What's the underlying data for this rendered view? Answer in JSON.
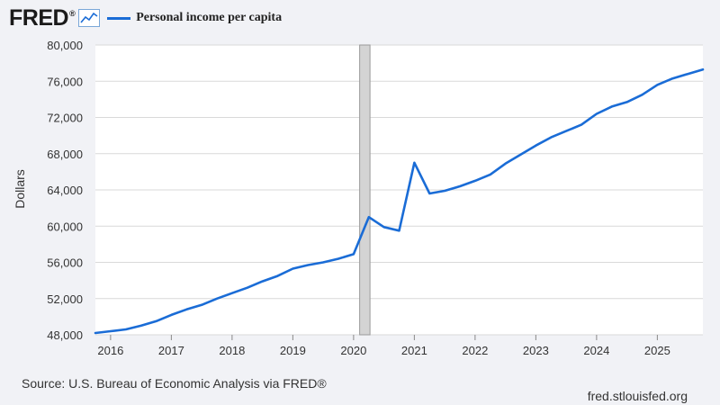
{
  "header": {
    "logo_text": "FRED",
    "logo_mark": "®",
    "logo_icon": "line-graph-icon",
    "legend_label": "Personal income per capita",
    "legend_color": "#1a6cd6"
  },
  "chart_data": {
    "type": "line",
    "title": "Personal income per capita",
    "ylabel": "Dollars",
    "xlabel": "",
    "ylim": [
      48000,
      80000
    ],
    "xlim": [
      2015.75,
      2025.75
    ],
    "yticks": [
      48000,
      52000,
      56000,
      60000,
      64000,
      68000,
      72000,
      76000,
      80000
    ],
    "ytick_labels": [
      "48,000",
      "52,000",
      "56,000",
      "60,000",
      "64,000",
      "68,000",
      "72,000",
      "76,000",
      "80,000"
    ],
    "xticks": [
      2016,
      2017,
      2018,
      2019,
      2020,
      2021,
      2022,
      2023,
      2024,
      2025
    ],
    "xtick_labels": [
      "2016",
      "2017",
      "2018",
      "2019",
      "2020",
      "2021",
      "2022",
      "2023",
      "2024",
      "2025"
    ],
    "grid": "horizontal",
    "recession_band": {
      "start": 2020.1,
      "end": 2020.27
    },
    "series": [
      {
        "name": "Personal income per capita",
        "color": "#1a6cd6",
        "x": [
          2015.75,
          2016.0,
          2016.25,
          2016.5,
          2016.75,
          2017.0,
          2017.25,
          2017.5,
          2017.75,
          2018.0,
          2018.25,
          2018.5,
          2018.75,
          2019.0,
          2019.25,
          2019.5,
          2019.75,
          2020.0,
          2020.25,
          2020.5,
          2020.75,
          2021.0,
          2021.25,
          2021.5,
          2021.75,
          2022.0,
          2022.25,
          2022.5,
          2022.75,
          2023.0,
          2023.25,
          2023.5,
          2023.75,
          2024.0,
          2024.25,
          2024.5,
          2024.75,
          2025.0,
          2025.25,
          2025.5,
          2025.75
        ],
        "values": [
          48200,
          48400,
          48600,
          49000,
          49500,
          50200,
          50800,
          51300,
          52000,
          52600,
          53200,
          53900,
          54500,
          55300,
          55700,
          56000,
          56400,
          56900,
          61000,
          59900,
          59500,
          67000,
          63600,
          63900,
          64400,
          65000,
          65700,
          66900,
          67900,
          68900,
          69800,
          70500,
          71200,
          72400,
          73200,
          73700,
          74500,
          75600,
          76300,
          76800,
          77300
        ]
      }
    ]
  },
  "footer": {
    "source": "Source: U.S. Bureau of Economic Analysis via FRED®",
    "site": "fred.stlouisfed.org"
  }
}
